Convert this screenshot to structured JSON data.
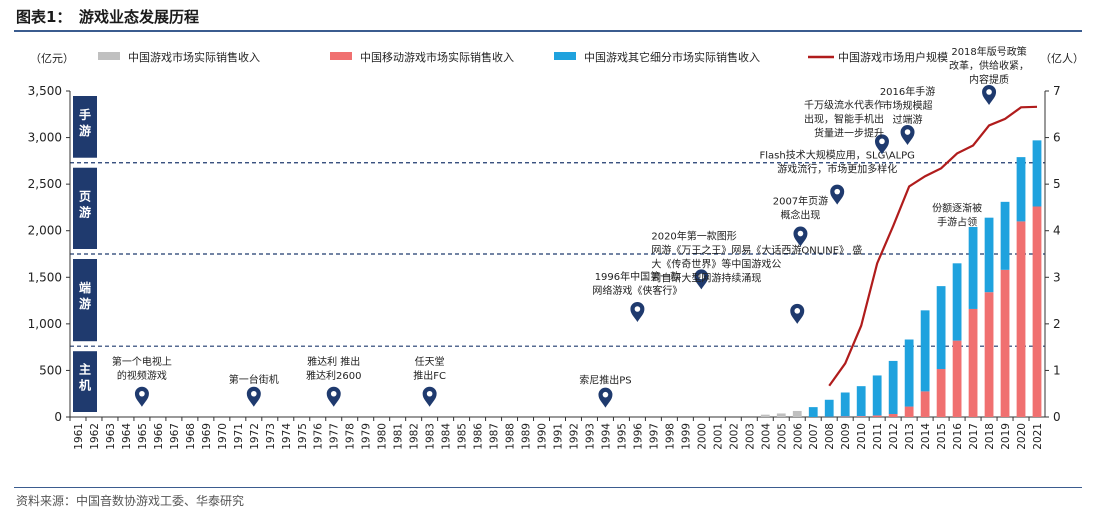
{
  "figure_title": "图表1：　游戏业态发展历程",
  "source": "资料来源：中国音数协游戏工委、华泰研究",
  "colors": {
    "console": "#c0c0c0",
    "mobile": "#f07070",
    "other": "#1fa2de",
    "users": "#b01c1c",
    "era": "#1f3a6e",
    "marker": "#1f3a6e"
  },
  "chart_data": {
    "type": "bar",
    "stacked": true,
    "y_unit_left": "（亿元）",
    "y_unit_right": "（亿人）",
    "ylim_left": [
      0,
      3500
    ],
    "ylim_right": [
      0,
      7
    ],
    "yticks_left": [
      "0",
      "500",
      "1,000",
      "1,500",
      "2,000",
      "2,500",
      "3,000",
      "3,500"
    ],
    "yticks_right": [
      "0",
      "1",
      "2",
      "3",
      "4",
      "5",
      "6",
      "7"
    ],
    "categories": [
      "1961",
      "1962",
      "1963",
      "1964",
      "1965",
      "1966",
      "1967",
      "1968",
      "1969",
      "1970",
      "1971",
      "1972",
      "1973",
      "1974",
      "1975",
      "1976",
      "1977",
      "1978",
      "1979",
      "1980",
      "1981",
      "1982",
      "1983",
      "1984",
      "1985",
      "1986",
      "1987",
      "1988",
      "1989",
      "1990",
      "1991",
      "1992",
      "1993",
      "1994",
      "1995",
      "1996",
      "1997",
      "1998",
      "1999",
      "2000",
      "2001",
      "2002",
      "2003",
      "2004",
      "2005",
      "2006",
      "2007",
      "2008",
      "2009",
      "2010",
      "2011",
      "2012",
      "2013",
      "2014",
      "2015",
      "2016",
      "2017",
      "2018",
      "2019",
      "2020",
      "2021"
    ],
    "series": [
      {
        "name": "中国游戏市场实际销售收入",
        "kind": "bar",
        "x": [
          "2004",
          "2005",
          "2006"
        ],
        "values": [
          25,
          38,
          65
        ]
      },
      {
        "name": "中国移动游戏市场实际销售收入",
        "kind": "bar",
        "x": [
          "2008",
          "2009",
          "2010",
          "2011",
          "2012",
          "2013",
          "2014",
          "2015",
          "2016",
          "2017",
          "2018",
          "2019",
          "2020",
          "2021"
        ],
        "values": [
          3,
          6,
          9,
          17,
          32,
          112,
          275,
          515,
          820,
          1160,
          1340,
          1580,
          2100,
          2260
        ]
      },
      {
        "name": "中国游戏其它细分市场实际销售收入",
        "kind": "bar",
        "x": [
          "2007",
          "2008",
          "2009",
          "2010",
          "2011",
          "2012",
          "2013",
          "2014",
          "2015",
          "2016",
          "2017",
          "2018",
          "2019",
          "2020",
          "2021"
        ],
        "values": [
          106,
          182,
          257,
          322,
          429,
          570,
          720,
          870,
          890,
          830,
          880,
          800,
          730,
          690,
          710
        ]
      },
      {
        "name": "中国游戏市场用户规模",
        "kind": "line",
        "axis": "right",
        "x": [
          "2008",
          "2009",
          "2010",
          "2011",
          "2012",
          "2013",
          "2014",
          "2015",
          "2016",
          "2017",
          "2018",
          "2019",
          "2020",
          "2021"
        ],
        "values": [
          0.67,
          1.15,
          1.96,
          3.3,
          4.1,
          4.95,
          5.17,
          5.34,
          5.66,
          5.83,
          6.26,
          6.4,
          6.65,
          6.66
        ]
      }
    ],
    "eras": [
      {
        "label": "主机",
        "y_from": 0,
        "y_to": 760
      },
      {
        "label": "端游",
        "y_from": 760,
        "y_to": 1750
      },
      {
        "label": "页游",
        "y_from": 1750,
        "y_to": 2730
      },
      {
        "label": "手游",
        "y_from": 2730,
        "y_to": 3500
      }
    ],
    "era_lines": [
      760,
      1750,
      2730
    ],
    "annotations": [
      {
        "x": "1965",
        "y": 110,
        "lines": [
          "第一个电视上",
          "的视频游戏"
        ],
        "anchor": "middle",
        "dy": -40
      },
      {
        "x": "1972",
        "y": 110,
        "lines": [
          "第一台街机"
        ],
        "anchor": "middle",
        "dy": -22
      },
      {
        "x": "1977",
        "y": 110,
        "lines": [
          "雅达利 推出",
          "雅达利2600"
        ],
        "anchor": "middle",
        "dy": -40
      },
      {
        "x": "1983",
        "y": 110,
        "lines": [
          "任天堂",
          "推出FC"
        ],
        "anchor": "middle",
        "dy": -40
      },
      {
        "x": "1994",
        "y": 100,
        "lines": [
          "索尼推出PS"
        ],
        "anchor": "middle",
        "dy": -22
      },
      {
        "x": "1996",
        "y": 1020,
        "lines": [
          "1996年中国第一款",
          "网络游戏《侠客行》"
        ],
        "anchor": "middle",
        "dy": -40
      },
      {
        "x": "2000",
        "y": 1370,
        "lines": [
          "2020年第一款图形",
          "网游《万王之王》网易《大话西游ONLINE》 盛",
          "大《传奇世界》等中国游戏公",
          "司自研大型网游持续涌现"
        ],
        "anchor": "start",
        "dx": -50,
        "dy": -48
      },
      {
        "x": "2006",
        "y": 1000,
        "lines": [],
        "anchor": "middle",
        "dy": 0
      },
      {
        "x": "2006.2",
        "y": 1830,
        "lines": [
          "2007年页游",
          "概念出现"
        ],
        "anchor": "middle",
        "dy": -40
      },
      {
        "x": "2008.5",
        "y": 2280,
        "lines": [
          "Flash技术大规模应用，SLG\\ALPG",
          "游戏流行，市场更加多样化"
        ],
        "anchor": "middle",
        "dy": -44
      },
      {
        "x": "2011.3",
        "y": 2820,
        "lines": [
          "千万级流水代表作",
          "出现，智能手机出",
          "货量进一步提升"
        ],
        "anchor": "end",
        "dx": 2,
        "dy": -44
      },
      {
        "x": "2012.9",
        "y": 2920,
        "lines": [
          "2016年手游",
          "市场规模超",
          "过端游"
        ],
        "anchor": "middle",
        "dy": -48
      },
      {
        "x": "2018",
        "y": 3350,
        "lines": [
          "2018年版号政策",
          "改革，供给收紧，",
          "内容提质"
        ],
        "anchor": "middle",
        "dy": -48
      },
      {
        "x": "2016",
        "y": 2080,
        "lines": [
          "份额逐渐被",
          "手游占领"
        ],
        "anchor": "middle",
        "dy": -10,
        "no_pin": true
      }
    ]
  }
}
